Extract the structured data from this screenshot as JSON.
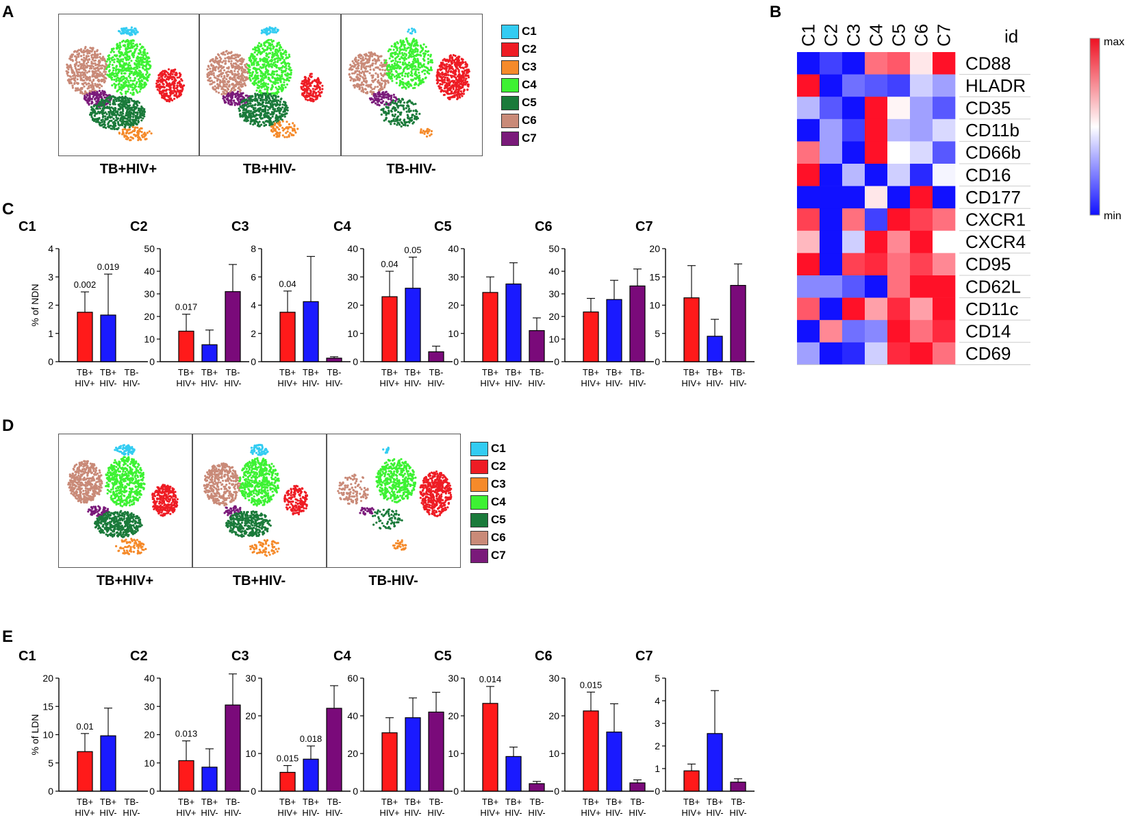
{
  "panels": {
    "a": "A",
    "b": "B",
    "c": "C",
    "d": "D",
    "e": "E"
  },
  "clusters": [
    {
      "id": "C1",
      "color": "#33ccf2"
    },
    {
      "id": "C2",
      "color": "#ee1c24"
    },
    {
      "id": "C3",
      "color": "#f58a2a"
    },
    {
      "id": "C4",
      "color": "#3df233"
    },
    {
      "id": "C5",
      "color": "#1a7a3a"
    },
    {
      "id": "C6",
      "color": "#c98a78"
    },
    {
      "id": "C7",
      "color": "#7a1a7a"
    }
  ],
  "tsne_a": {
    "labels": [
      "TB+HIV+",
      "TB+HIV-",
      "TB-HIV-"
    ],
    "legend": [
      "C1",
      "C2",
      "C3",
      "C4",
      "C5",
      "C6",
      "C7"
    ]
  },
  "tsne_d": {
    "labels": [
      "TB+HIV+",
      "TB+HIV-",
      "TB-HIV-"
    ],
    "legend": [
      "C1",
      "C2",
      "C3",
      "C4",
      "C5",
      "C6",
      "C7"
    ]
  },
  "heatmap": {
    "columns": [
      "C1",
      "C2",
      "C3",
      "C4",
      "C5",
      "C6",
      "C7"
    ],
    "id_label": "id",
    "rows": [
      "CD88",
      "HLADR",
      "CD35",
      "CD11b",
      "CD66b",
      "CD16",
      "CD177",
      "CXCR1",
      "CXCR4",
      "CD95",
      "CD62L",
      "CD11c",
      "CD14",
      "CD69"
    ],
    "values": [
      [
        0.0,
        0.1,
        0.0,
        0.8,
        0.85,
        0.55,
        1.0
      ],
      [
        1.0,
        0.0,
        0.2,
        0.15,
        0.1,
        0.4,
        0.3
      ],
      [
        0.35,
        0.15,
        0.0,
        1.0,
        0.52,
        0.3,
        0.15
      ],
      [
        0.0,
        0.3,
        0.1,
        1.0,
        0.35,
        0.3,
        0.42
      ],
      [
        0.8,
        0.3,
        0.0,
        1.0,
        0.5,
        0.42,
        0.15
      ],
      [
        1.0,
        0.0,
        0.35,
        0.0,
        0.4,
        0.05,
        0.48
      ],
      [
        0.0,
        0.0,
        0.0,
        0.55,
        0.0,
        1.0,
        0.0
      ],
      [
        0.9,
        0.0,
        0.8,
        0.1,
        1.0,
        0.9,
        0.8
      ],
      [
        0.65,
        0.0,
        0.4,
        1.0,
        0.75,
        1.0,
        0.5
      ],
      [
        1.0,
        0.0,
        0.9,
        0.95,
        0.8,
        0.9,
        0.75
      ],
      [
        0.25,
        0.25,
        0.15,
        0.0,
        0.8,
        1.0,
        1.0
      ],
      [
        0.85,
        0.0,
        1.0,
        0.7,
        0.95,
        0.7,
        1.0
      ],
      [
        0.0,
        0.75,
        0.2,
        0.25,
        1.0,
        0.8,
        0.95
      ],
      [
        0.3,
        0.0,
        0.05,
        0.4,
        0.95,
        1.0,
        0.8
      ]
    ],
    "scale_max": "max",
    "scale_min": "min"
  },
  "chart_data": [
    {
      "panel": "C",
      "type": "bar",
      "title": "C1",
      "ylabel": "% of NDN",
      "ylim": [
        0,
        4
      ],
      "ticks": [
        0,
        1,
        2,
        3,
        4
      ],
      "categories": [
        "TB+ HIV+",
        "TB+ HIV-",
        "TB- HIV-"
      ],
      "values": [
        1.75,
        1.65,
        0
      ],
      "errors": [
        0.72,
        1.45,
        0
      ],
      "pvalues": [
        "0.002",
        "0.019",
        ""
      ]
    },
    {
      "panel": "C",
      "type": "bar",
      "title": "C2",
      "ylabel": "",
      "ylim": [
        0,
        50
      ],
      "ticks": [
        0,
        10,
        20,
        30,
        40,
        50
      ],
      "categories": [
        "TB+ HIV+",
        "TB+ HIV-",
        "TB- HIV-"
      ],
      "values": [
        13.5,
        7.5,
        31
      ],
      "errors": [
        7.5,
        6.5,
        12
      ],
      "pvalues": [
        "0.017",
        "",
        ""
      ]
    },
    {
      "panel": "C",
      "type": "bar",
      "title": "C3",
      "ylabel": "",
      "ylim": [
        0,
        8
      ],
      "ticks": [
        0,
        2,
        4,
        6,
        8
      ],
      "categories": [
        "TB+ HIV+",
        "TB+ HIV-",
        "TB- HIV-"
      ],
      "values": [
        3.5,
        4.25,
        0.25
      ],
      "errors": [
        1.5,
        3.2,
        0.1
      ],
      "pvalues": [
        "0.04",
        "",
        ""
      ]
    },
    {
      "panel": "C",
      "type": "bar",
      "title": "C4",
      "ylabel": "",
      "ylim": [
        0,
        40
      ],
      "ticks": [
        0,
        10,
        20,
        30,
        40
      ],
      "categories": [
        "TB+ HIV+",
        "TB+ HIV-",
        "TB- HIV-"
      ],
      "values": [
        23,
        26,
        3.5
      ],
      "errors": [
        9,
        11,
        2
      ],
      "pvalues": [
        "0.04",
        "0.05",
        ""
      ]
    },
    {
      "panel": "C",
      "type": "bar",
      "title": "C5",
      "ylabel": "",
      "ylim": [
        0,
        40
      ],
      "ticks": [
        0,
        10,
        20,
        30,
        40
      ],
      "categories": [
        "TB+ HIV+",
        "TB+ HIV-",
        "TB- HIV-"
      ],
      "values": [
        24.5,
        27.5,
        11
      ],
      "errors": [
        5.5,
        7.5,
        4.5
      ],
      "pvalues": [
        "",
        "",
        ""
      ]
    },
    {
      "panel": "C",
      "type": "bar",
      "title": "C6",
      "ylabel": "",
      "ylim": [
        0,
        50
      ],
      "ticks": [
        0,
        10,
        20,
        30,
        40,
        50
      ],
      "categories": [
        "TB+ HIV+",
        "TB+ HIV-",
        "TB- HIV-"
      ],
      "values": [
        22,
        27.5,
        33.5
      ],
      "errors": [
        6,
        8.5,
        7.5
      ],
      "pvalues": [
        "",
        "",
        ""
      ]
    },
    {
      "panel": "C",
      "type": "bar",
      "title": "C7",
      "ylabel": "",
      "ylim": [
        0,
        20
      ],
      "ticks": [
        0,
        5,
        10,
        15,
        20
      ],
      "categories": [
        "TB+ HIV+",
        "TB+ HIV-",
        "TB- HIV-"
      ],
      "values": [
        11.3,
        4.5,
        13.5
      ],
      "errors": [
        5.7,
        3,
        3.8
      ],
      "pvalues": [
        "",
        "",
        ""
      ]
    },
    {
      "panel": "E",
      "type": "bar",
      "title": "C1",
      "ylabel": "% of LDN",
      "ylim": [
        0,
        20
      ],
      "ticks": [
        0,
        5,
        10,
        15,
        20
      ],
      "categories": [
        "TB+ HIV+",
        "TB+ HIV-",
        "TB- HIV-"
      ],
      "values": [
        7,
        9.8,
        0
      ],
      "errors": [
        3.2,
        4.9,
        0
      ],
      "pvalues": [
        "0.01",
        "",
        ""
      ]
    },
    {
      "panel": "E",
      "type": "bar",
      "title": "C2",
      "ylabel": "",
      "ylim": [
        0,
        40
      ],
      "ticks": [
        0,
        10,
        20,
        30,
        40
      ],
      "categories": [
        "TB+ HIV+",
        "TB+ HIV-",
        "TB- HIV-"
      ],
      "values": [
        10.8,
        8.5,
        30.5
      ],
      "errors": [
        7,
        6.5,
        11
      ],
      "pvalues": [
        "0.013",
        "",
        ""
      ]
    },
    {
      "panel": "E",
      "type": "bar",
      "title": "C3",
      "ylabel": "",
      "ylim": [
        0,
        30
      ],
      "ticks": [
        0,
        10,
        20,
        30
      ],
      "categories": [
        "TB+ HIV+",
        "TB+ HIV-",
        "TB- HIV-"
      ],
      "values": [
        5,
        8.5,
        22
      ],
      "errors": [
        1.8,
        3.5,
        6
      ],
      "pvalues": [
        "0.015",
        "0.018",
        ""
      ]
    },
    {
      "panel": "E",
      "type": "bar",
      "title": "C4",
      "ylabel": "",
      "ylim": [
        0,
        60
      ],
      "ticks": [
        0,
        20,
        40,
        60
      ],
      "categories": [
        "TB+ HIV+",
        "TB+ HIV-",
        "TB- HIV-"
      ],
      "values": [
        31,
        39,
        42
      ],
      "errors": [
        8,
        10.5,
        10.5
      ],
      "pvalues": [
        "",
        "",
        ""
      ]
    },
    {
      "panel": "E",
      "type": "bar",
      "title": "C5",
      "ylabel": "",
      "ylim": [
        0,
        30
      ],
      "ticks": [
        0,
        10,
        20,
        30
      ],
      "categories": [
        "TB+ HIV+",
        "TB+ HIV-",
        "TB- HIV-"
      ],
      "values": [
        23.3,
        9.2,
        2
      ],
      "errors": [
        4.5,
        2.5,
        0.6
      ],
      "pvalues": [
        "0.014",
        "",
        ""
      ]
    },
    {
      "panel": "E",
      "type": "bar",
      "title": "C6",
      "ylabel": "",
      "ylim": [
        0,
        30
      ],
      "ticks": [
        0,
        10,
        20,
        30
      ],
      "categories": [
        "TB+ HIV+",
        "TB+ HIV-",
        "TB- HIV-"
      ],
      "values": [
        21.3,
        15.7,
        2.2
      ],
      "errors": [
        5,
        7.5,
        0.8
      ],
      "pvalues": [
        "0.015",
        "",
        ""
      ]
    },
    {
      "panel": "E",
      "type": "bar",
      "title": "C7",
      "ylabel": "",
      "ylim": [
        0,
        5
      ],
      "ticks": [
        0,
        1,
        2,
        3,
        4,
        5
      ],
      "categories": [
        "TB+ HIV+",
        "TB+ HIV-",
        "TB- HIV-"
      ],
      "values": [
        0.9,
        2.55,
        0.4
      ],
      "errors": [
        0.3,
        1.9,
        0.15
      ],
      "pvalues": [
        "",
        "",
        ""
      ]
    }
  ]
}
